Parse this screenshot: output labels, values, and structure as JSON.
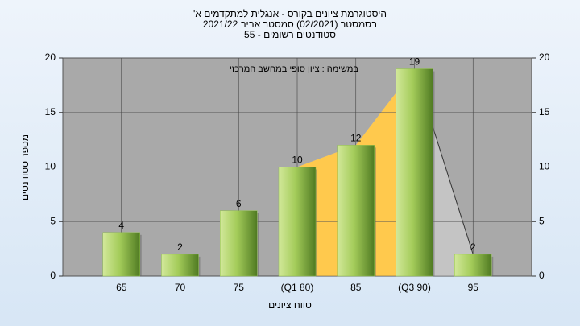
{
  "chart_data": {
    "type": "bar",
    "title": [
      "היסטוגרמת ציונים בקורס - אנגלית למתקדמים א'",
      "בסמסטר  (02/2021)  סמסטר אביב 2021/22",
      "סטודנטים רשומים - 55"
    ],
    "annotation": "במשימה : ציון סופי במחשב המרכזי",
    "x_label": "טווח ציונים",
    "y_label": "מספר סטודנטים",
    "categories": [
      "65",
      "70",
      "75",
      "(Q1 80)",
      "85",
      "(Q3 90)",
      "95"
    ],
    "values": [
      4,
      2,
      6,
      10,
      12,
      19,
      2
    ],
    "color": "#8fc14a",
    "ylim": [
      0,
      20
    ],
    "yticks": [
      0,
      5,
      10,
      15,
      20
    ],
    "y2lim": [
      0,
      20
    ],
    "y2ticks": [
      0,
      5,
      10,
      15,
      20
    ],
    "grid": true
  }
}
